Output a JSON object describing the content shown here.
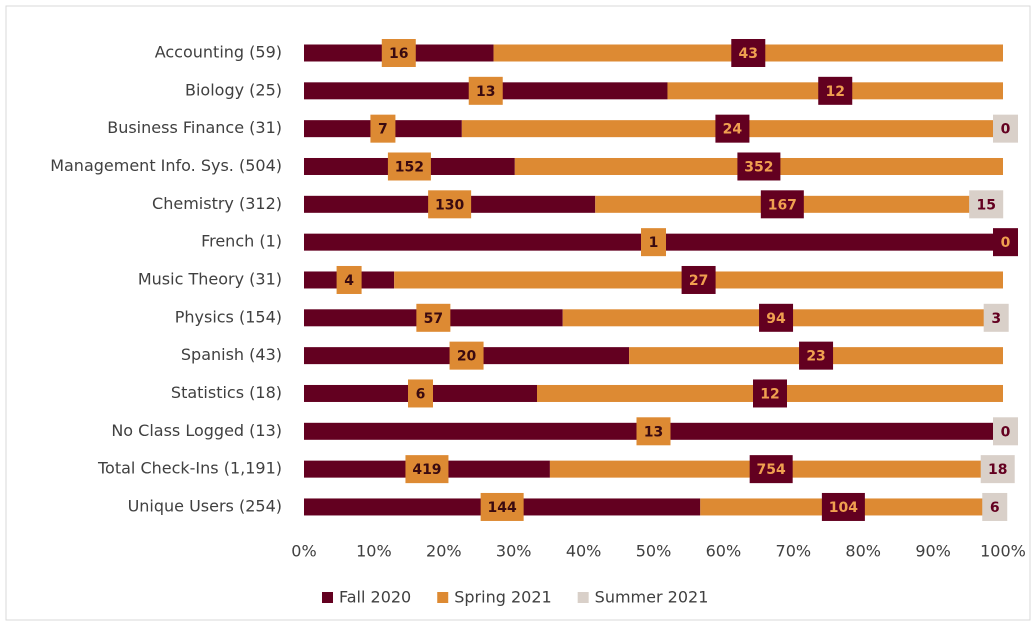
{
  "chart_data": {
    "type": "bar-100-stacked-horizontal",
    "categories": [
      "Accounting (59)",
      "Biology (25)",
      "Business Finance (31) ",
      "Management Info. Sys.  (504)",
      "Chemistry (312)",
      "French (1)",
      "Music Theory (31)",
      "Physics (154)",
      "Spanish (43)",
      "Statistics (18)",
      "No Class Logged (13)",
      "Total Check-Ins (1,191)",
      "Unique Users (254)"
    ],
    "series": [
      {
        "name": "Fall 2020",
        "color": "#630020",
        "values": [
          16,
          13,
          7,
          152,
          130,
          1,
          4,
          57,
          20,
          6,
          13,
          419,
          144
        ]
      },
      {
        "name": "Spring 2021",
        "color": "#dd8a33",
        "values": [
          43,
          12,
          24,
          352,
          167,
          0,
          27,
          94,
          23,
          12,
          null,
          754,
          104
        ]
      },
      {
        "name": "Summer 2021",
        "color": "#d9d0c9",
        "values": [
          null,
          null,
          0,
          null,
          15,
          null,
          null,
          3,
          null,
          null,
          0,
          18,
          6
        ]
      }
    ],
    "xlim": [
      0,
      100
    ],
    "xticks": [
      {
        "value": 0,
        "label": "0%"
      },
      {
        "value": 10,
        "label": "10%"
      },
      {
        "value": 20,
        "label": "20%"
      },
      {
        "value": 30,
        "label": "30%"
      },
      {
        "value": 40,
        "label": "40%"
      },
      {
        "value": 50,
        "label": "50%"
      },
      {
        "value": 60,
        "label": "60%"
      },
      {
        "value": 70,
        "label": "70%"
      },
      {
        "value": 80,
        "label": "80%"
      },
      {
        "value": 90,
        "label": "90%"
      },
      {
        "value": 100,
        "label": "100%"
      }
    ],
    "legend": "bottom"
  }
}
